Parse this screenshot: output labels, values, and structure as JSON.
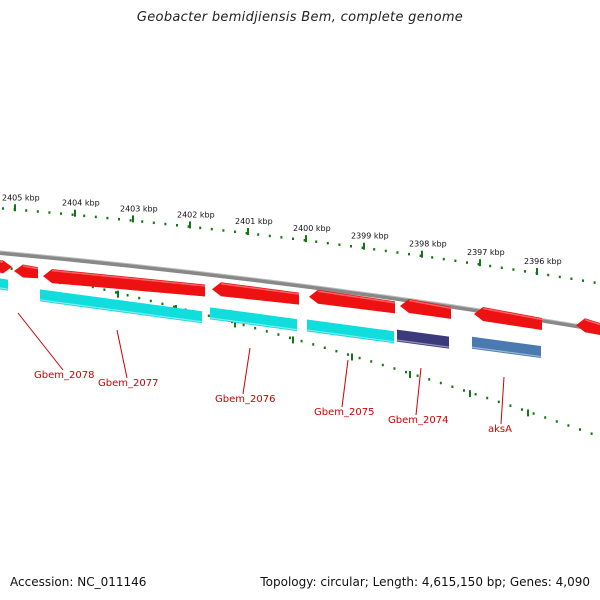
{
  "title": "Geobacter bemidjiensis Bem, complete genome",
  "footer": {
    "accession": "Accession: NC_011146",
    "topology": "Topology: circular; Length: 4,615,150 bp; Genes: 4,090"
  },
  "scale": {
    "ticks": [
      {
        "label": "2405 kbp"
      },
      {
        "label": "2404 kbp"
      },
      {
        "label": "2403 kbp"
      },
      {
        "label": "2402 kbp"
      },
      {
        "label": "2401 kbp"
      },
      {
        "label": "2400 kbp"
      },
      {
        "label": "2399 kbp"
      },
      {
        "label": "2398 kbp"
      },
      {
        "label": "2397 kbp"
      },
      {
        "label": "2396 kbp"
      }
    ]
  },
  "colors": {
    "forward": "#ee1111",
    "cyan": "#11dddd",
    "navy": "#3c3a7a",
    "steel": "#4a7ab0",
    "tick": "#117711",
    "label": "#cc0000",
    "backbone": "#888888"
  },
  "genes": [
    {
      "name": "Gbem_2078"
    },
    {
      "name": "Gbem_2077"
    },
    {
      "name": "Gbem_2076"
    },
    {
      "name": "Gbem_2075"
    },
    {
      "name": "Gbem_2074"
    },
    {
      "name": "aksA"
    }
  ]
}
